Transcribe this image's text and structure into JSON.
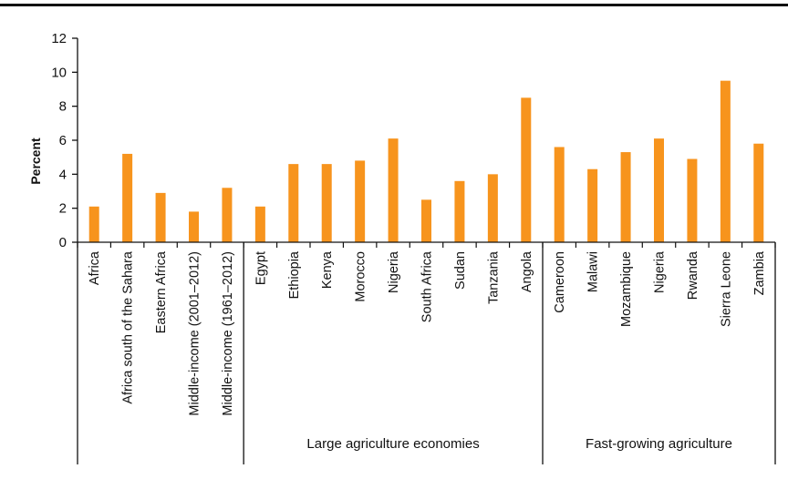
{
  "chart_data": {
    "type": "bar",
    "ylabel": "Percent",
    "ylim": [
      0,
      12
    ],
    "yticks": [
      0,
      2,
      4,
      6,
      8,
      10,
      12
    ],
    "grid": false,
    "legend": "none",
    "bar_color": "#F7941D",
    "categories": [
      "Africa",
      "Africa south of the Sahara",
      "Eastern Africa",
      "Middle-income (2001–2012)",
      "Middle-income (1961–2012)",
      "Egypt",
      "Ethiopia",
      "Kenya",
      "Morocco",
      "Nigeria",
      "South Africa",
      "Sudan",
      "Tanzania",
      "Angola",
      "Cameroon",
      "Malawi",
      "Mozambique",
      "Nigeria",
      "Rwanda",
      "Sierra Leone",
      "Zambia"
    ],
    "values": [
      2.1,
      5.2,
      2.9,
      1.8,
      3.2,
      2.1,
      4.6,
      4.6,
      4.8,
      6.1,
      2.5,
      3.6,
      4.0,
      8.5,
      5.6,
      4.3,
      5.3,
      6.1,
      4.9,
      9.5,
      5.8
    ],
    "groups": [
      {
        "label": "",
        "count": 5
      },
      {
        "label": "Large agriculture economies",
        "count": 9
      },
      {
        "label": "Fast-growing agriculture",
        "count": 7
      }
    ]
  }
}
